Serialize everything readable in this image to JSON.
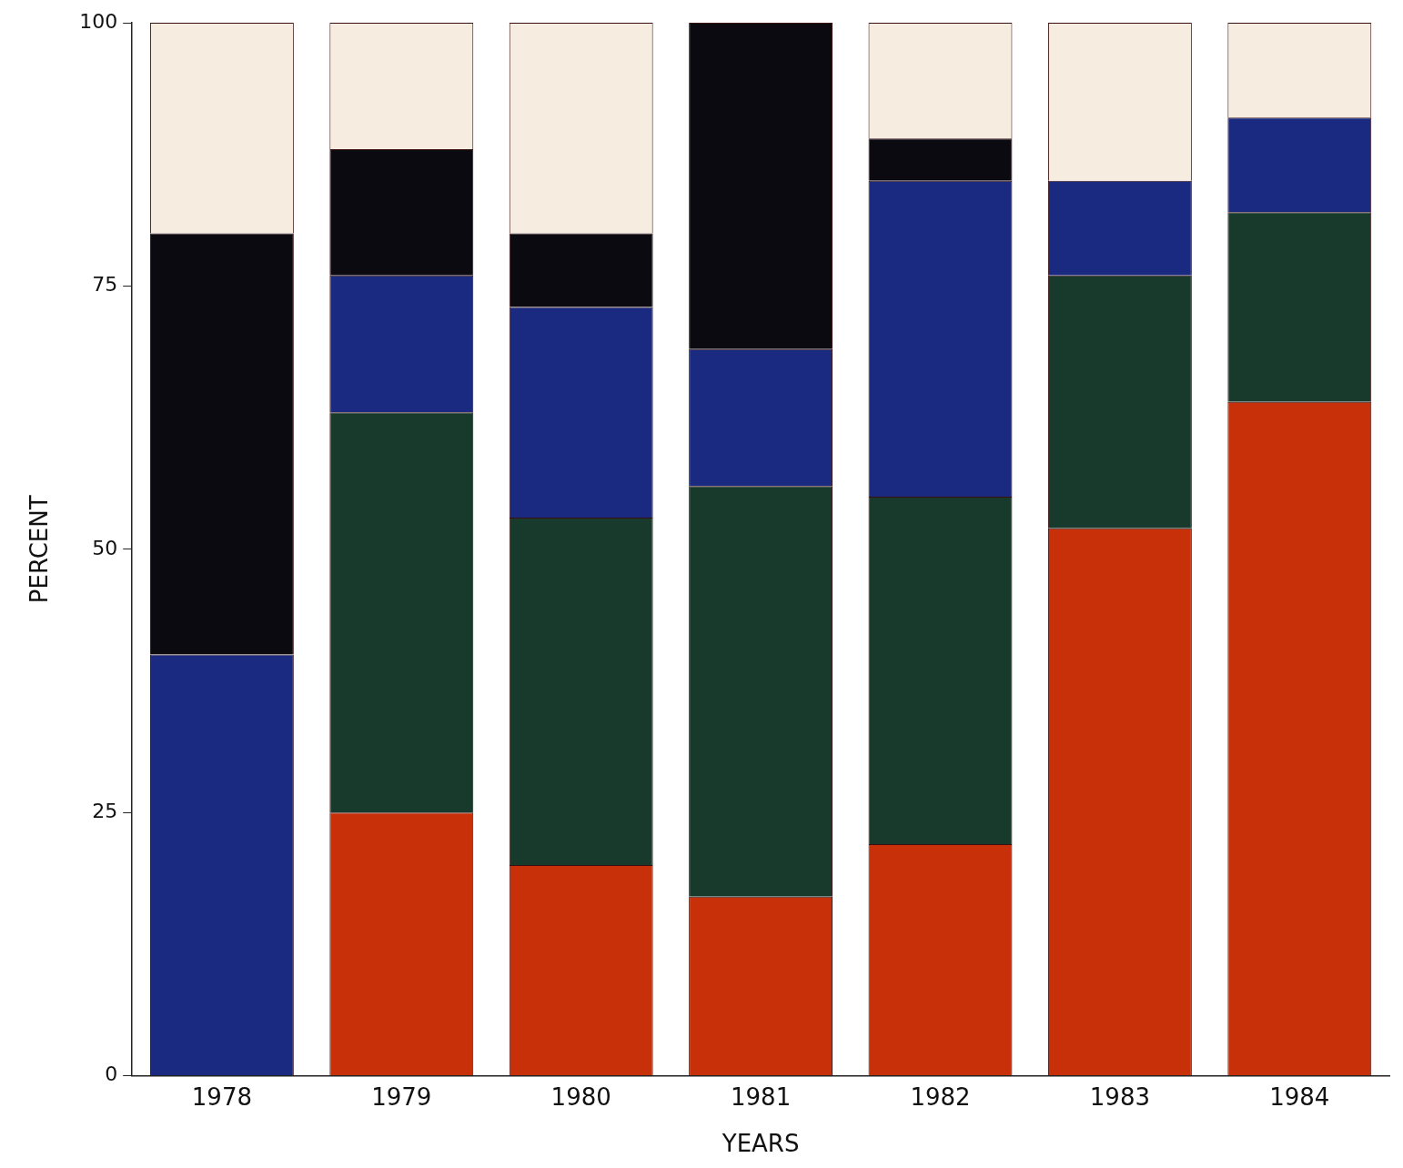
{
  "chart_data": {
    "type": "bar",
    "stacked": true,
    "xlabel": "YEARS",
    "ylabel": "PERCENT",
    "categories": [
      "1978",
      "1979",
      "1980",
      "1981",
      "1982",
      "1983",
      "1984"
    ],
    "series": [
      {
        "color": "#c8300a",
        "values": [
          0,
          25,
          20,
          17,
          22,
          52,
          64
        ]
      },
      {
        "color": "#183a2c",
        "values": [
          0,
          38,
          33,
          39,
          33,
          24,
          18
        ]
      },
      {
        "color": "#1a2a80",
        "values": [
          40,
          13,
          20,
          13,
          30,
          9,
          9
        ]
      },
      {
        "color": "#0a0a10",
        "values": [
          40,
          12,
          7,
          31,
          4,
          0,
          0
        ]
      },
      {
        "color": "#f6ece0",
        "values": [
          20,
          12,
          20,
          0,
          11,
          15,
          9
        ]
      }
    ],
    "ylim": [
      0,
      100
    ],
    "yticks": [
      0,
      25,
      50,
      75,
      100
    ],
    "grid": false,
    "legend": false
  }
}
